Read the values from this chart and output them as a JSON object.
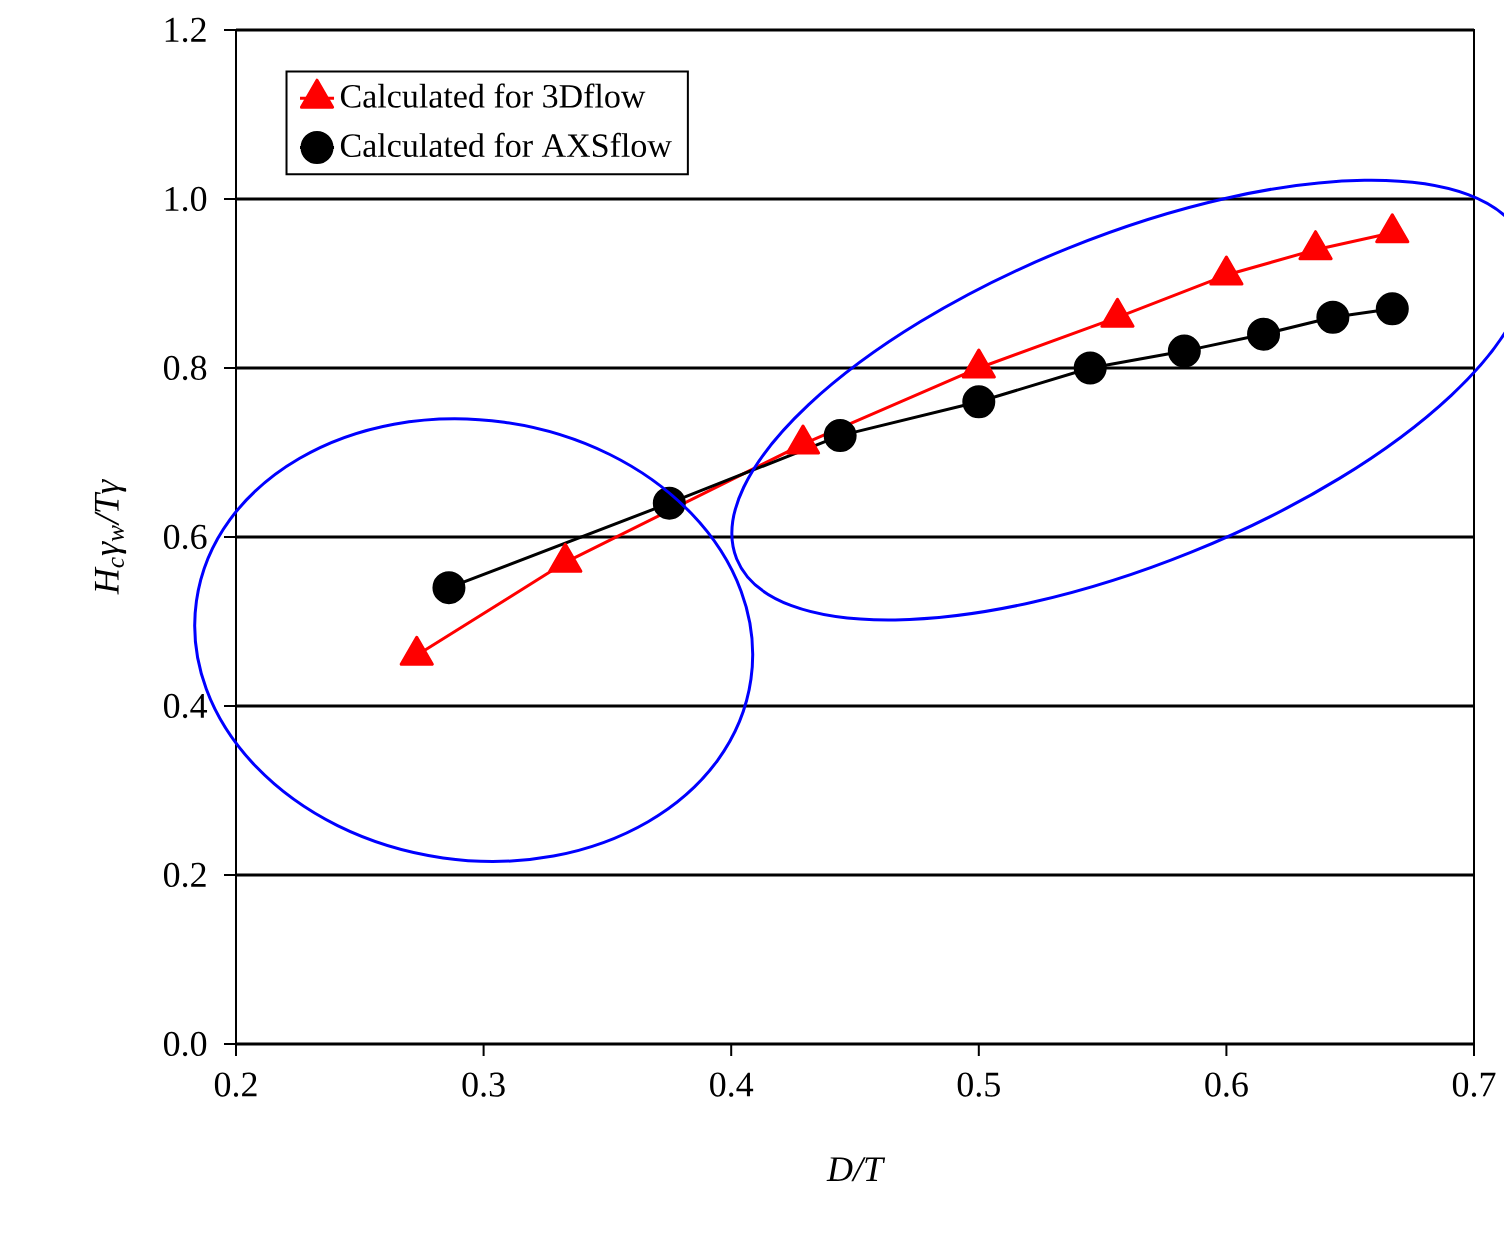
{
  "chart_data": {
    "type": "line",
    "xlabel": "D/T",
    "ylabel": "H$_{c}$γ$_{w}$/Tγ",
    "xlim": [
      0.2,
      0.7
    ],
    "xticks": [
      0.2,
      0.3,
      0.4,
      0.5,
      0.6,
      0.7
    ],
    "ylim": [
      0.0,
      1.2
    ],
    "yticks": [
      {
        "value": 0,
        "label": "0.0"
      },
      0.2,
      0.4,
      0.6,
      0.8,
      {
        "value": 1,
        "label": "1.0"
      },
      1.2
    ],
    "grid": "y",
    "legend": "top left",
    "line_style": "solid",
    "series": [
      {
        "name": "Calculated for 3Dflow",
        "color": "#ff0000",
        "marker": "triangle",
        "x": [
          0.273,
          0.333,
          0.429,
          0.5,
          0.556,
          0.6,
          0.636,
          0.667
        ],
        "values": [
          0.46,
          0.57,
          0.71,
          0.8,
          0.86,
          0.91,
          0.94,
          0.96
        ]
      },
      {
        "name": "Calculated for AXSflow",
        "color": "#000000",
        "marker": "circle",
        "x": [
          0.286,
          0.375,
          0.444,
          0.5,
          0.545,
          0.583,
          0.615,
          0.643,
          0.667
        ],
        "values": [
          0.54,
          0.64,
          0.72,
          0.76,
          0.8,
          0.82,
          0.84,
          0.86,
          0.87
        ]
      }
    ]
  }
}
